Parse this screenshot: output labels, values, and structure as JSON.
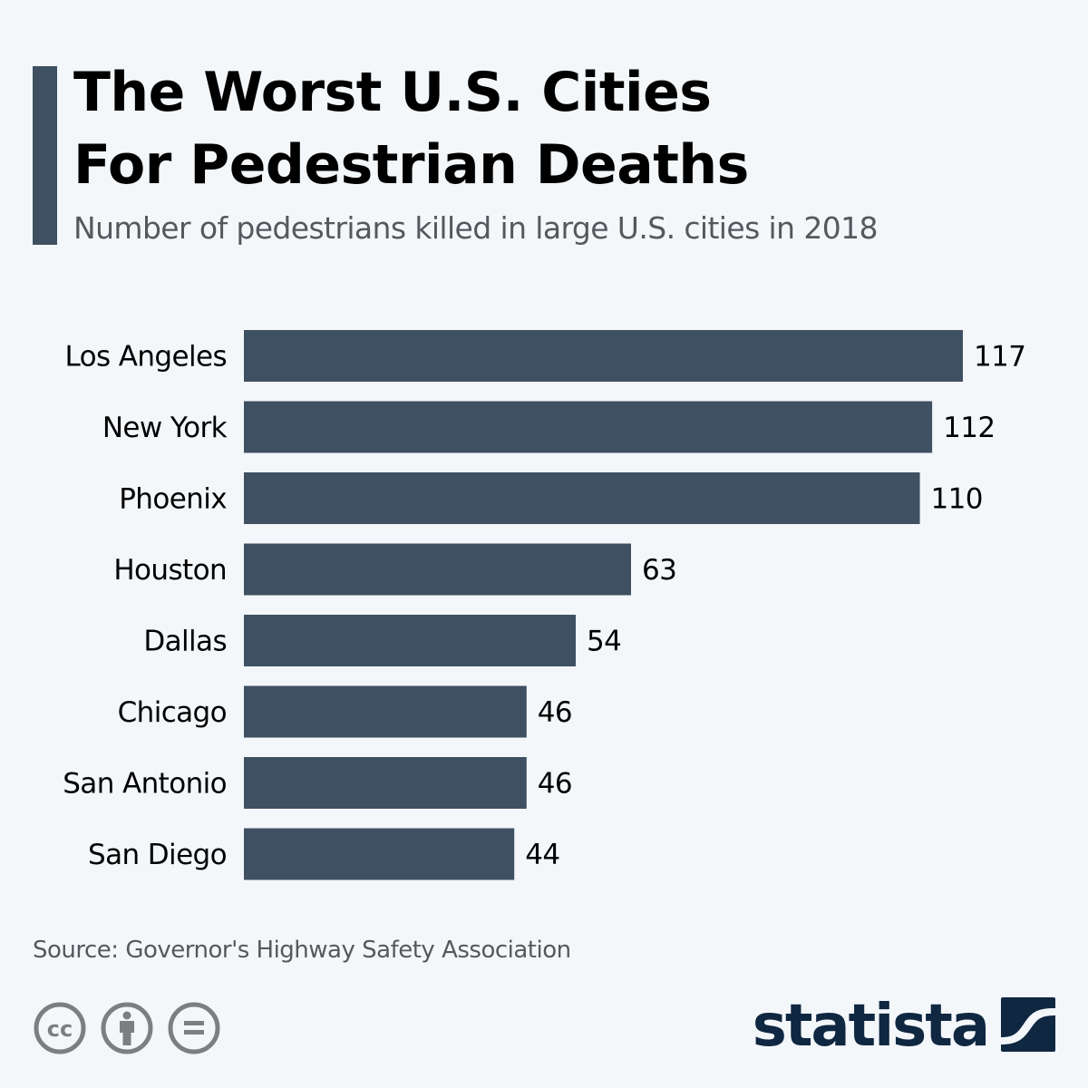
{
  "header": {
    "title_line1": "The Worst U.S. Cities",
    "title_line2": "For Pedestrian Deaths",
    "subtitle": "Number of pedestrians killed in large U.S. cities in 2018"
  },
  "colors": {
    "bar": "#3f5062",
    "accent": "#3f5062",
    "background": "#f4f7fa",
    "logo": "#0f2741"
  },
  "chart_data": {
    "type": "bar",
    "orientation": "horizontal",
    "title": "The Worst U.S. Cities For Pedestrian Deaths",
    "subtitle": "Number of pedestrians killed in large U.S. cities in 2018",
    "categories": [
      "Los Angeles",
      "New York",
      "Phoenix",
      "Houston",
      "Dallas",
      "Chicago",
      "San Antonio",
      "San Diego"
    ],
    "values": [
      117,
      112,
      110,
      63,
      54,
      46,
      46,
      44
    ],
    "xlabel": "",
    "ylabel": "",
    "xlim": [
      0,
      117
    ],
    "grid": false,
    "data_labels": true
  },
  "footer": {
    "source": "Source: Governor's Highway Safety Association",
    "license_icons": [
      "cc-icon",
      "attribution-icon",
      "no-derivatives-icon"
    ],
    "logo_text": "statista"
  }
}
